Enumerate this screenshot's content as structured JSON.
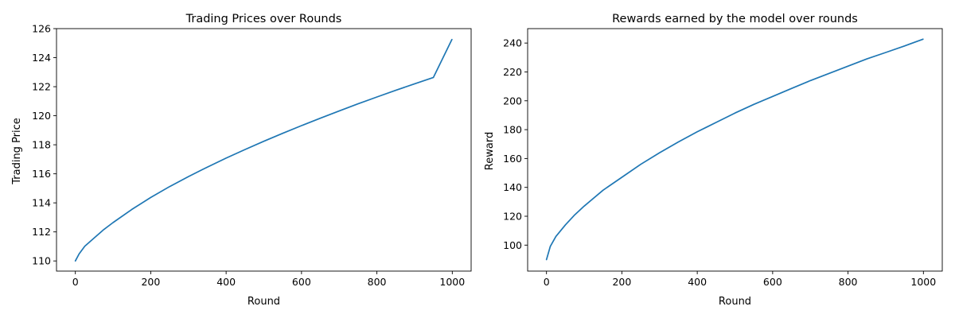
{
  "chart_data": [
    {
      "type": "line",
      "title": "Trading Prices over Rounds",
      "xlabel": "Round",
      "ylabel": "Trading Price",
      "xlim": [
        -50,
        1050
      ],
      "ylim": [
        109.3,
        126
      ],
      "xticks": [
        0,
        200,
        400,
        600,
        800,
        1000
      ],
      "yticks": [
        110,
        112,
        114,
        116,
        118,
        120,
        122,
        124,
        126
      ],
      "grid": false,
      "series": [
        {
          "color": "#1f77b4",
          "x": [
            0,
            10,
            25,
            50,
            75,
            100,
            150,
            200,
            250,
            300,
            350,
            400,
            450,
            500,
            550,
            600,
            650,
            700,
            750,
            800,
            850,
            900,
            950,
            999
          ],
          "values": [
            110.0,
            110.48,
            111.01,
            111.59,
            112.15,
            112.64,
            113.55,
            114.37,
            115.12,
            115.81,
            116.46,
            117.08,
            117.67,
            118.24,
            118.79,
            119.32,
            119.83,
            120.33,
            120.82,
            121.29,
            121.75,
            122.2,
            122.64,
            125.25
          ]
        }
      ]
    },
    {
      "type": "line",
      "title": "Rewards earned by the model over rounds",
      "xlabel": "Round",
      "ylabel": "Reward",
      "xlim": [
        -50,
        1050
      ],
      "ylim": [
        82,
        250
      ],
      "xticks": [
        0,
        200,
        400,
        600,
        800,
        1000
      ],
      "yticks": [
        100,
        120,
        140,
        160,
        180,
        200,
        220,
        240
      ],
      "grid": false,
      "series": [
        {
          "color": "#1f77b4",
          "x": [
            0,
            10,
            25,
            50,
            75,
            100,
            150,
            200,
            250,
            300,
            350,
            400,
            450,
            500,
            550,
            600,
            650,
            700,
            750,
            800,
            850,
            900,
            950,
            999
          ],
          "values": [
            90.0,
            99.0,
            106.0,
            114.0,
            121.0,
            127.0,
            138.0,
            147.0,
            156.0,
            164.0,
            171.5,
            178.5,
            185.0,
            191.5,
            197.5,
            203.0,
            208.5,
            214.0,
            219.0,
            224.0,
            229.0,
            233.5,
            238.0,
            242.7
          ]
        }
      ]
    }
  ]
}
